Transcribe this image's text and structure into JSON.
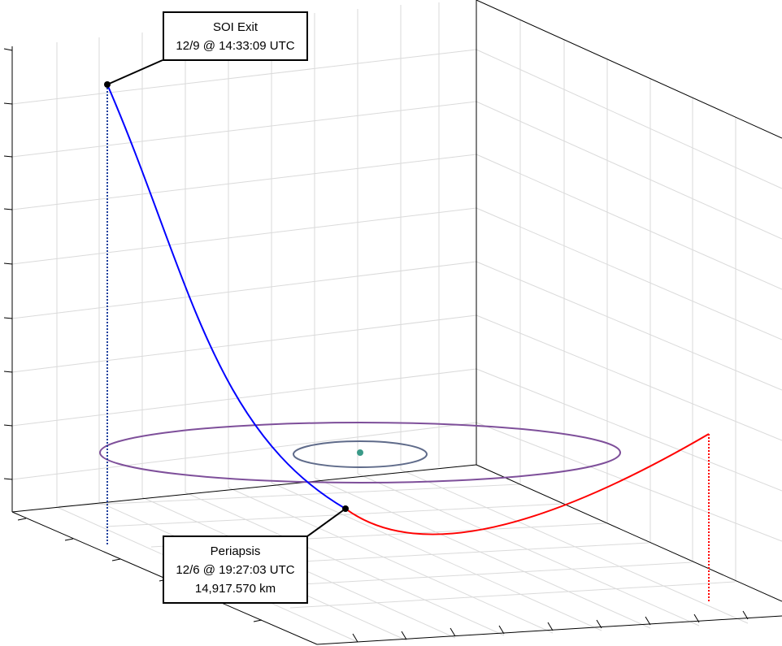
{
  "annotations": {
    "soi_exit": {
      "title": "SOI Exit",
      "time": "12/9 @ 14:33:09 UTC"
    },
    "periapsis": {
      "title": "Periapsis",
      "time": "12/6 @ 19:27:03 UTC",
      "altitude": "14,917.570 km"
    }
  },
  "colors": {
    "departure_trajectory": "#0000ff",
    "arrival_trajectory": "#ff0000",
    "outer_orbit": "#7e4f9a",
    "inner_orbit": "#5f6b8a",
    "central_body": "#3a9a88",
    "grid": "#d9d9d9",
    "axes": "#000000"
  }
}
